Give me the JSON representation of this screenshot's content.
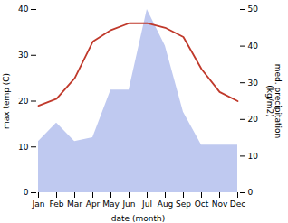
{
  "chart_data": {
    "type": "line",
    "categories": [
      "Jan",
      "Feb",
      "Mar",
      "Apr",
      "May",
      "Jun",
      "Jul",
      "Aug",
      "Sep",
      "Oct",
      "Nov",
      "Dec"
    ],
    "series": [
      {
        "type": "area",
        "axis": "y2",
        "color": "#bfc9f0",
        "values": [
          14,
          19,
          14,
          15,
          28,
          28,
          50,
          40,
          22,
          13,
          13,
          13
        ]
      },
      {
        "type": "line",
        "color": "#c0392b",
        "values": [
          19,
          20.5,
          25,
          33,
          35.5,
          37,
          37,
          36,
          34,
          27,
          22,
          20
        ]
      }
    ],
    "xlabel": "date (month)",
    "ylabel": "max temp (C)",
    "y2label": "med. precipitation\n(kg/m2)",
    "ylim": [
      0,
      40
    ],
    "yticks": [
      0,
      10,
      20,
      30,
      40
    ],
    "y2lim": [
      0,
      50
    ],
    "y2ticks": [
      0,
      10,
      20,
      30,
      40,
      50
    ],
    "grid": false
  }
}
